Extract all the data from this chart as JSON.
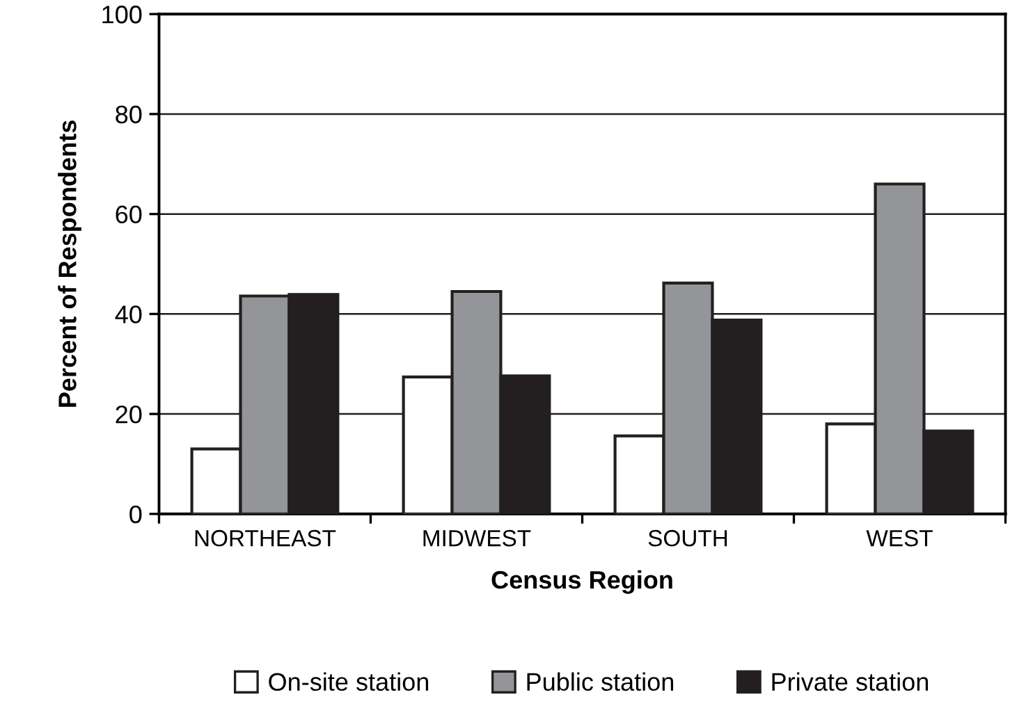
{
  "chart_data": {
    "type": "bar",
    "xlabel": "Census Region",
    "ylabel": "Percent of Respondents",
    "categories": [
      "NORTHEAST",
      "MIDWEST",
      "SOUTH",
      "WEST"
    ],
    "series": [
      {
        "name": "On-site station",
        "color": "#ffffff",
        "values": [
          13,
          27.4,
          15.6,
          18
        ]
      },
      {
        "name": "Public station",
        "color": "#939598",
        "values": [
          43.6,
          44.5,
          46.2,
          66
        ]
      },
      {
        "name": "Private station",
        "color": "#231f20",
        "values": [
          43.9,
          27.6,
          38.8,
          16.6
        ]
      }
    ],
    "ylim": [
      0,
      100
    ],
    "yticks": [
      0,
      20,
      40,
      60,
      80,
      100
    ],
    "grid": "y",
    "legend": "bottom"
  }
}
